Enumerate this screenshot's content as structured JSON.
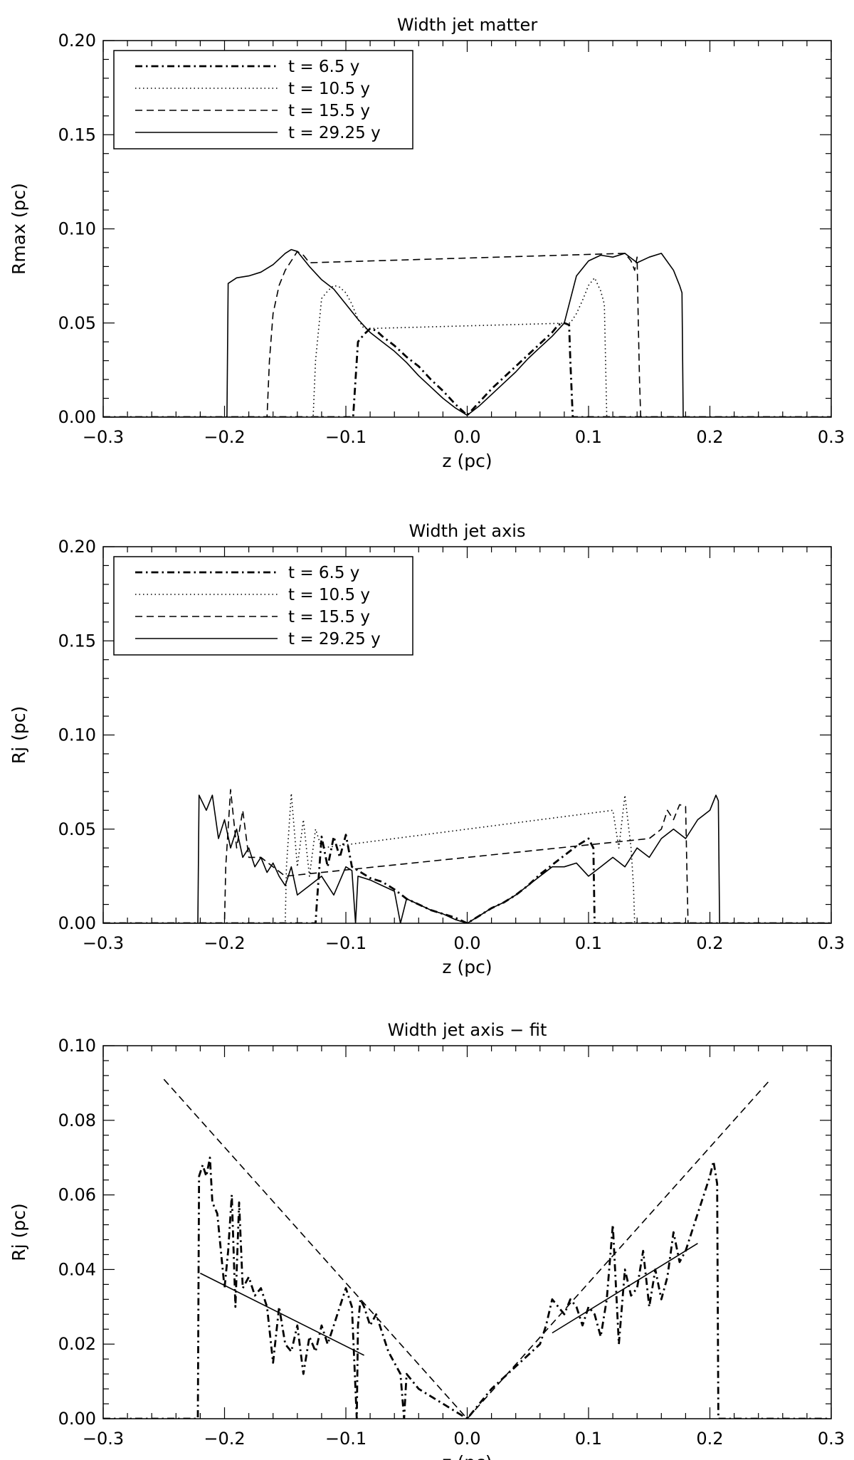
{
  "figure": {
    "background": "#ffffff",
    "ink": "#000000"
  },
  "chart_data": [
    {
      "type": "line",
      "title": "Width jet matter",
      "xlabel": "z (pc)",
      "ylabel": "Rmax (pc)",
      "xlim": [
        -0.3,
        0.3
      ],
      "ylim": [
        0.0,
        0.2
      ],
      "xticks": [
        -0.3,
        -0.2,
        -0.1,
        0.0,
        0.1,
        0.2,
        0.3
      ],
      "xtick_labels": [
        "−0.3",
        "−0.2",
        "−0.1",
        "0.0",
        "0.1",
        "0.2",
        "0.3"
      ],
      "yticks": [
        0.0,
        0.05,
        0.1,
        0.15,
        0.2
      ],
      "ytick_labels": [
        "0.00",
        "0.05",
        "0.10",
        "0.15",
        "0.20"
      ],
      "legend_position": "top-left",
      "series": [
        {
          "name": "t = 6.5 y",
          "style": "dashdot-thick",
          "x": [
            -0.3,
            -0.094,
            -0.092,
            -0.09,
            -0.085,
            -0.08,
            -0.075,
            -0.07,
            -0.06,
            -0.05,
            -0.04,
            -0.03,
            -0.02,
            -0.01,
            0.0,
            0.01,
            0.02,
            0.03,
            0.04,
            0.05,
            0.06,
            0.07,
            0.075,
            0.08,
            0.084,
            0.085,
            0.087,
            0.3
          ],
          "y": [
            0.0,
            0.0,
            0.02,
            0.04,
            0.044,
            0.047,
            0.046,
            0.043,
            0.038,
            0.032,
            0.027,
            0.02,
            0.014,
            0.007,
            0.001,
            0.008,
            0.015,
            0.021,
            0.027,
            0.033,
            0.039,
            0.045,
            0.049,
            0.05,
            0.049,
            0.03,
            0.0,
            0.0
          ]
        },
        {
          "name": "t = 10.5 y",
          "style": "dotted",
          "x": [
            -0.3,
            -0.127,
            -0.125,
            -0.12,
            -0.115,
            -0.11,
            -0.105,
            -0.1,
            -0.095,
            -0.09,
            -0.085,
            0.085,
            0.09,
            0.095,
            0.1,
            0.105,
            0.11,
            0.113,
            0.114,
            0.115,
            0.3
          ],
          "y": [
            0.0,
            0.0,
            0.03,
            0.063,
            0.067,
            0.07,
            0.069,
            0.066,
            0.06,
            0.052,
            0.047,
            0.05,
            0.055,
            0.062,
            0.07,
            0.074,
            0.067,
            0.06,
            0.03,
            0.0,
            0.0
          ]
        },
        {
          "name": "t = 15.5 y",
          "style": "dashed",
          "x": [
            -0.3,
            -0.165,
            -0.163,
            -0.16,
            -0.155,
            -0.15,
            -0.145,
            -0.14,
            -0.135,
            -0.13,
            0.13,
            0.135,
            0.138,
            0.14,
            0.141,
            0.142,
            0.143,
            0.3
          ],
          "y": [
            0.0,
            0.0,
            0.03,
            0.055,
            0.07,
            0.078,
            0.083,
            0.088,
            0.086,
            0.082,
            0.087,
            0.083,
            0.078,
            0.085,
            0.05,
            0.02,
            0.0,
            0.0
          ]
        },
        {
          "name": "t = 29.25 y",
          "style": "solid",
          "x": [
            -0.3,
            -0.198,
            -0.197,
            -0.19,
            -0.18,
            -0.17,
            -0.16,
            -0.15,
            -0.145,
            -0.14,
            -0.13,
            -0.12,
            -0.11,
            -0.1,
            -0.09,
            -0.08,
            -0.07,
            -0.06,
            -0.05,
            -0.04,
            -0.03,
            -0.02,
            -0.01,
            0.0,
            0.01,
            0.02,
            0.03,
            0.04,
            0.05,
            0.06,
            0.07,
            0.08,
            0.09,
            0.1,
            0.11,
            0.12,
            0.13,
            0.14,
            0.15,
            0.16,
            0.17,
            0.175,
            0.177,
            0.178,
            0.3
          ],
          "y": [
            0.0,
            0.0,
            0.071,
            0.074,
            0.075,
            0.077,
            0.081,
            0.087,
            0.089,
            0.088,
            0.08,
            0.073,
            0.068,
            0.06,
            0.052,
            0.045,
            0.04,
            0.035,
            0.029,
            0.022,
            0.016,
            0.01,
            0.005,
            0.001,
            0.006,
            0.012,
            0.018,
            0.024,
            0.031,
            0.037,
            0.043,
            0.05,
            0.075,
            0.083,
            0.086,
            0.085,
            0.087,
            0.082,
            0.085,
            0.087,
            0.078,
            0.07,
            0.066,
            0.0,
            0.0
          ]
        }
      ]
    },
    {
      "type": "line",
      "title": "Width jet axis",
      "xlabel": "z (pc)",
      "ylabel": "Rj (pc)",
      "xlim": [
        -0.3,
        0.3
      ],
      "ylim": [
        0.0,
        0.2
      ],
      "xticks": [
        -0.3,
        -0.2,
        -0.1,
        0.0,
        0.1,
        0.2,
        0.3
      ],
      "xtick_labels": [
        "−0.3",
        "−0.2",
        "−0.1",
        "0.0",
        "0.1",
        "0.2",
        "0.3"
      ],
      "yticks": [
        0.0,
        0.05,
        0.1,
        0.15,
        0.2
      ],
      "ytick_labels": [
        "0.00",
        "0.05",
        "0.10",
        "0.15",
        "0.20"
      ],
      "legend_position": "top-left",
      "series": [
        {
          "name": "t = 6.5 y",
          "style": "dashdot-thick",
          "x": [
            -0.3,
            -0.125,
            -0.124,
            -0.12,
            -0.115,
            -0.11,
            -0.105,
            -0.1,
            -0.095,
            -0.09,
            -0.085,
            -0.08,
            -0.07,
            -0.06,
            -0.05,
            -0.04,
            -0.03,
            -0.02,
            -0.01,
            0.0,
            0.01,
            0.02,
            0.03,
            0.04,
            0.05,
            0.06,
            0.07,
            0.08,
            0.09,
            0.1,
            0.104,
            0.105,
            0.3
          ],
          "y": [
            0.0,
            0.0,
            0.01,
            0.046,
            0.03,
            0.046,
            0.035,
            0.047,
            0.03,
            0.028,
            0.026,
            0.024,
            0.022,
            0.018,
            0.013,
            0.01,
            0.007,
            0.005,
            0.003,
            0.0,
            0.004,
            0.008,
            0.011,
            0.015,
            0.02,
            0.026,
            0.031,
            0.036,
            0.041,
            0.045,
            0.04,
            0.0,
            0.0
          ]
        },
        {
          "name": "t = 10.5 y",
          "style": "dotted",
          "x": [
            -0.3,
            -0.15,
            -0.149,
            -0.145,
            -0.14,
            -0.135,
            -0.13,
            -0.125,
            -0.12,
            0.12,
            0.125,
            0.13,
            0.135,
            0.137,
            0.138,
            0.3
          ],
          "y": [
            0.0,
            0.0,
            0.03,
            0.069,
            0.03,
            0.055,
            0.025,
            0.05,
            0.04,
            0.06,
            0.04,
            0.068,
            0.04,
            0.02,
            0.0,
            0.0
          ]
        },
        {
          "name": "t = 15.5 y",
          "style": "dashed",
          "x": [
            -0.3,
            -0.2,
            -0.199,
            -0.195,
            -0.19,
            -0.185,
            -0.18,
            -0.17,
            -0.16,
            -0.15,
            0.15,
            0.16,
            0.165,
            0.17,
            0.175,
            0.18,
            0.181,
            0.182,
            0.3
          ],
          "y": [
            0.0,
            0.0,
            0.03,
            0.071,
            0.04,
            0.06,
            0.035,
            0.035,
            0.03,
            0.025,
            0.045,
            0.05,
            0.06,
            0.055,
            0.063,
            0.062,
            0.03,
            0.0,
            0.0
          ]
        },
        {
          "name": "t = 29.25 y",
          "style": "solid",
          "x": [
            -0.3,
            -0.222,
            -0.221,
            -0.215,
            -0.21,
            -0.205,
            -0.2,
            -0.195,
            -0.19,
            -0.185,
            -0.18,
            -0.175,
            -0.17,
            -0.165,
            -0.16,
            -0.155,
            -0.15,
            -0.145,
            -0.14,
            -0.13,
            -0.12,
            -0.11,
            -0.1,
            -0.095,
            -0.092,
            -0.09,
            -0.08,
            -0.07,
            -0.06,
            -0.055,
            -0.05,
            -0.04,
            -0.03,
            -0.02,
            -0.01,
            0.0,
            0.01,
            0.02,
            0.03,
            0.04,
            0.05,
            0.06,
            0.07,
            0.08,
            0.09,
            0.1,
            0.11,
            0.12,
            0.13,
            0.14,
            0.15,
            0.16,
            0.17,
            0.18,
            0.19,
            0.2,
            0.205,
            0.207,
            0.208,
            0.3
          ],
          "y": [
            0.0,
            0.0,
            0.068,
            0.06,
            0.068,
            0.045,
            0.055,
            0.04,
            0.05,
            0.035,
            0.04,
            0.03,
            0.035,
            0.027,
            0.032,
            0.025,
            0.02,
            0.03,
            0.015,
            0.02,
            0.025,
            0.015,
            0.03,
            0.028,
            0.0,
            0.025,
            0.023,
            0.02,
            0.017,
            0.0,
            0.013,
            0.01,
            0.007,
            0.005,
            0.002,
            0.0,
            0.004,
            0.008,
            0.011,
            0.015,
            0.02,
            0.025,
            0.03,
            0.03,
            0.032,
            0.025,
            0.03,
            0.035,
            0.03,
            0.04,
            0.035,
            0.045,
            0.05,
            0.045,
            0.055,
            0.06,
            0.068,
            0.065,
            0.0,
            0.0
          ]
        }
      ]
    },
    {
      "type": "line",
      "title": "Width jet axis − fit",
      "xlabel": "z (pc)",
      "ylabel": "Rj (pc)",
      "xlim": [
        -0.3,
        0.3
      ],
      "ylim": [
        0.0,
        0.1
      ],
      "xticks": [
        -0.3,
        -0.2,
        -0.1,
        0.0,
        0.1,
        0.2,
        0.3
      ],
      "xtick_labels": [
        "−0.3",
        "−0.2",
        "−0.1",
        "0.0",
        "0.1",
        "0.2",
        "0.3"
      ],
      "yticks": [
        0.0,
        0.02,
        0.04,
        0.06,
        0.08,
        0.1
      ],
      "ytick_labels": [
        "0.00",
        "0.02",
        "0.04",
        "0.06",
        "0.08",
        "0.10"
      ],
      "series": [
        {
          "style": "dashdot-thick",
          "x": [
            -0.3,
            -0.222,
            -0.221,
            -0.218,
            -0.215,
            -0.212,
            -0.21,
            -0.206,
            -0.203,
            -0.2,
            -0.197,
            -0.194,
            -0.191,
            -0.188,
            -0.185,
            -0.18,
            -0.175,
            -0.17,
            -0.165,
            -0.16,
            -0.155,
            -0.15,
            -0.145,
            -0.14,
            -0.135,
            -0.13,
            -0.125,
            -0.12,
            -0.115,
            -0.11,
            -0.105,
            -0.1,
            -0.095,
            -0.091,
            -0.09,
            -0.088,
            -0.085,
            -0.08,
            -0.075,
            -0.07,
            -0.065,
            -0.06,
            -0.055,
            -0.052,
            -0.05,
            -0.045,
            -0.04,
            -0.03,
            -0.02,
            -0.01,
            0.0,
            0.01,
            0.02,
            0.03,
            0.04,
            0.05,
            0.06,
            0.065,
            0.07,
            0.075,
            0.08,
            0.085,
            0.09,
            0.095,
            0.1,
            0.105,
            0.11,
            0.115,
            0.12,
            0.125,
            0.13,
            0.135,
            0.14,
            0.145,
            0.15,
            0.155,
            0.16,
            0.165,
            0.17,
            0.175,
            0.18,
            0.185,
            0.19,
            0.195,
            0.2,
            0.203,
            0.206,
            0.207,
            0.3
          ],
          "y": [
            0.0,
            0.0,
            0.065,
            0.068,
            0.065,
            0.07,
            0.058,
            0.055,
            0.045,
            0.035,
            0.045,
            0.06,
            0.03,
            0.058,
            0.035,
            0.038,
            0.033,
            0.035,
            0.03,
            0.015,
            0.03,
            0.02,
            0.018,
            0.025,
            0.012,
            0.022,
            0.018,
            0.025,
            0.02,
            0.025,
            0.03,
            0.035,
            0.03,
            0.0,
            0.025,
            0.032,
            0.03,
            0.025,
            0.028,
            0.023,
            0.018,
            0.015,
            0.012,
            0.0,
            0.012,
            0.01,
            0.008,
            0.006,
            0.004,
            0.002,
            0.0,
            0.004,
            0.008,
            0.011,
            0.014,
            0.017,
            0.02,
            0.025,
            0.032,
            0.03,
            0.028,
            0.032,
            0.03,
            0.025,
            0.03,
            0.028,
            0.022,
            0.032,
            0.052,
            0.02,
            0.04,
            0.033,
            0.035,
            0.045,
            0.03,
            0.04,
            0.032,
            0.038,
            0.05,
            0.042,
            0.045,
            0.05,
            0.055,
            0.06,
            0.065,
            0.069,
            0.063,
            0.0,
            0.0
          ]
        },
        {
          "style": "dashed",
          "x": [
            -0.25,
            0.0,
            0.25
          ],
          "y": [
            0.091,
            0.0,
            0.091
          ]
        },
        {
          "style": "solid",
          "x": [
            -0.22,
            -0.085
          ],
          "y": [
            0.039,
            0.017
          ]
        },
        {
          "style": "solid",
          "x": [
            0.07,
            0.19
          ],
          "y": [
            0.023,
            0.047
          ]
        }
      ]
    }
  ]
}
